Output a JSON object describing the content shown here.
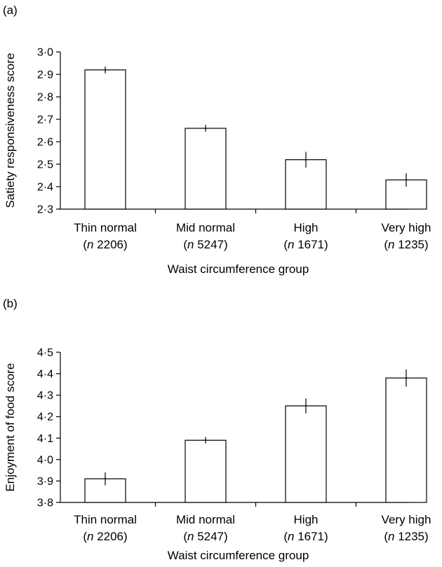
{
  "chart_data": [
    {
      "panel_label": "(a)",
      "type": "bar",
      "categories": [
        "Thin normal",
        "Mid normal",
        "High",
        "Very high"
      ],
      "category_n": [
        "2206",
        "5247",
        "1671",
        "1235"
      ],
      "n_prefix": "n",
      "values": [
        2.92,
        2.66,
        2.52,
        2.43
      ],
      "error": [
        0.015,
        0.015,
        0.035,
        0.03
      ],
      "xlabel": "Waist circumference group",
      "ylabel": "Satiety responsiveness score",
      "ylim": [
        2.3,
        3.0
      ],
      "yticks": [
        "2·3",
        "2·4",
        "2·5",
        "2·6",
        "2·7",
        "2·8",
        "2·9",
        "3·0"
      ],
      "grid": false
    },
    {
      "panel_label": "(b)",
      "type": "bar",
      "categories": [
        "Thin normal",
        "Mid normal",
        "High",
        "Very high"
      ],
      "category_n": [
        "2206",
        "5247",
        "1671",
        "1235"
      ],
      "n_prefix": "n",
      "values": [
        3.91,
        4.09,
        4.25,
        4.38
      ],
      "error": [
        0.03,
        0.015,
        0.035,
        0.04
      ],
      "xlabel": "Waist circumference group",
      "ylabel": "Enjoyment of food score",
      "ylim": [
        3.8,
        4.5
      ],
      "yticks": [
        "3·8",
        "3·9",
        "4·0",
        "4·1",
        "4·2",
        "4·3",
        "4·4",
        "4·5"
      ],
      "grid": false
    }
  ]
}
